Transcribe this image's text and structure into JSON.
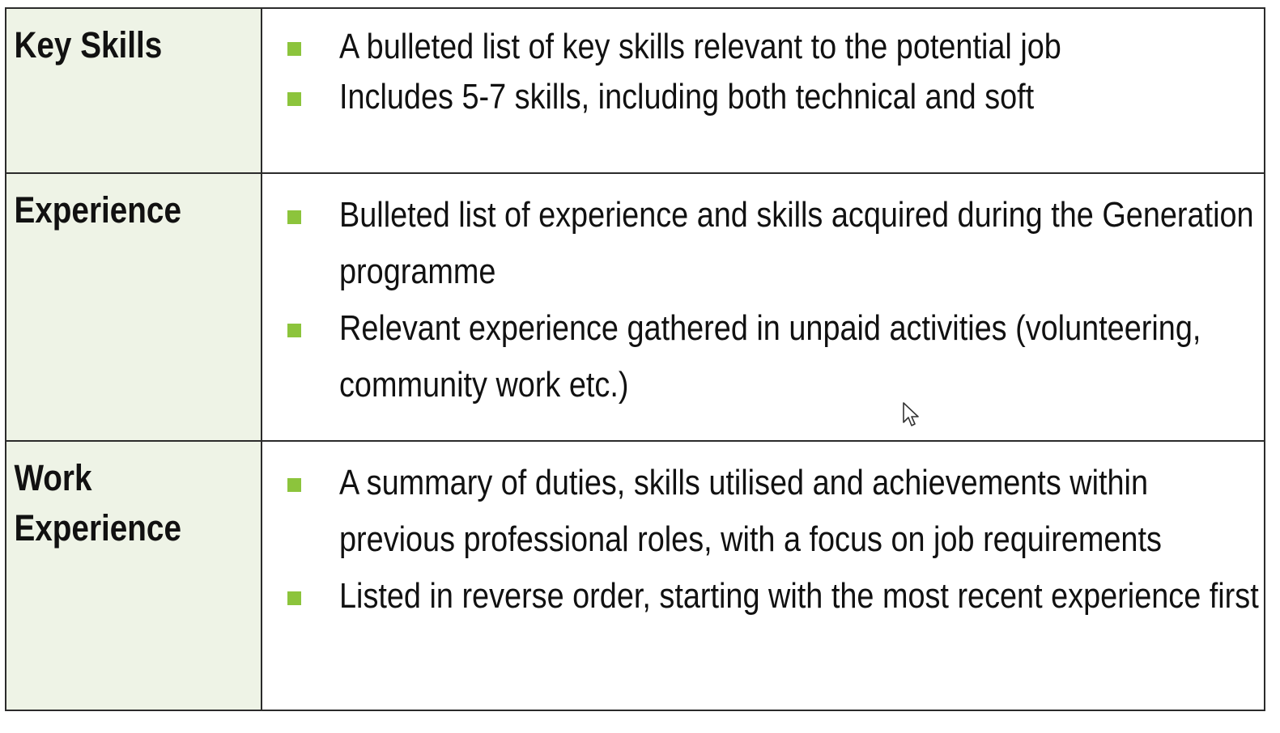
{
  "rows": [
    {
      "label": "Key Skills",
      "bullets": [
        "A bulleted list of key skills relevant to the potential job",
        "Includes 5-7 skills, including both technical and soft"
      ]
    },
    {
      "label": "Experience",
      "bullets": [
        "Bulleted list of experience and skills acquired during the Generation programme",
        "Relevant experience gathered in unpaid activities (volunteering, community work etc.)"
      ]
    },
    {
      "label": "Work\nExperience",
      "bullets": [
        "A summary of duties, skills utilised and achievements within previous professional roles, with a focus on job requirements",
        "Listed in reverse order, starting with the most recent experience first"
      ]
    }
  ],
  "colors": {
    "label_background": "#eef3e6",
    "bullet": "#8cc43c",
    "border": "#2b2b2b"
  },
  "icons": {
    "cursor": "mouse-pointer-icon",
    "bullet": "square-bullet-icon"
  }
}
